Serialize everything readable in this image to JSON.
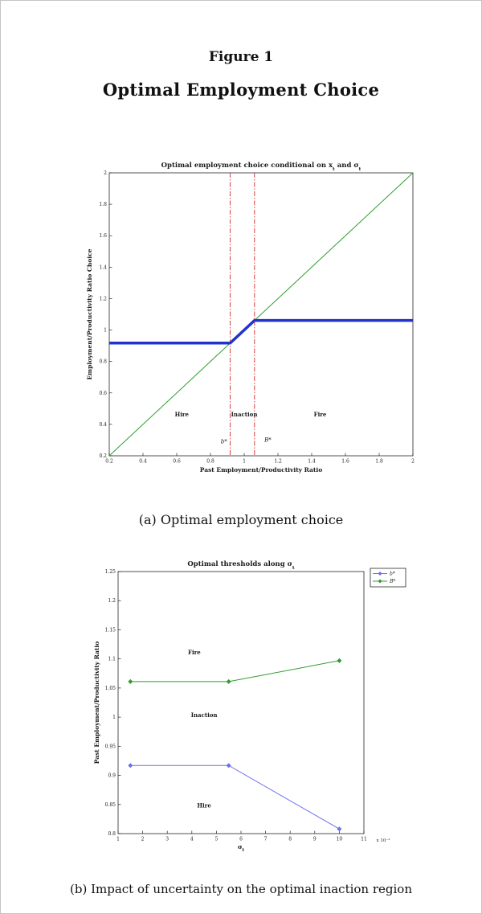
{
  "figure": {
    "number": "Figure 1",
    "title": "Optimal Employment Choice",
    "caption_a": "(a) Optimal employment choice",
    "caption_b": "(b) Impact of uncertainty on the optimal inaction region"
  },
  "colors": {
    "policy_blue": "#2233cc",
    "threshold_blue": "#6d6df2",
    "green": "#2e9e2e",
    "red": "#d42a2a",
    "axis": "#262626"
  },
  "chart_data": [
    {
      "type": "line",
      "title": "Optimal employment choice conditional on x_t and σ_t",
      "xlabel": "Past Employment/Productivity Ratio",
      "ylabel": "Employment/Productivity Ratio Choice",
      "xlim": [
        0.2,
        2
      ],
      "ylim": [
        0.2,
        2
      ],
      "xticks": [
        0.2,
        0.4,
        0.6,
        0.8,
        1,
        1.2,
        1.4,
        1.6,
        1.8,
        2
      ],
      "yticks": [
        0.2,
        0.4,
        0.6,
        0.8,
        1,
        1.2,
        1.4,
        1.6,
        1.8,
        2
      ],
      "grid": false,
      "legend_position": "none",
      "series": [
        {
          "name": "45-degree-line",
          "color": "#2e9e2e",
          "width": 1,
          "x": [
            0.2,
            2
          ],
          "y": [
            0.2,
            2
          ]
        },
        {
          "name": "optimal-policy",
          "color": "#2233cc",
          "width": 3.5,
          "x": [
            0.2,
            0.917,
            1.061,
            2
          ],
          "y": [
            0.917,
            0.917,
            1.061,
            1.061
          ]
        }
      ],
      "vlines": [
        {
          "x": 0.917,
          "color": "#d42a2a",
          "style": "dash-dot",
          "label": "b*"
        },
        {
          "x": 1.061,
          "color": "#d42a2a",
          "style": "dash-dot",
          "label": "B*"
        }
      ],
      "annotations": [
        {
          "text": "Hire",
          "x": 0.63,
          "y": 0.45,
          "style": "bold"
        },
        {
          "text": "Inaction",
          "x": 1.0,
          "y": 0.45,
          "style": "bold"
        },
        {
          "text": "Fire",
          "x": 1.45,
          "y": 0.45,
          "style": "bold"
        },
        {
          "text": "b*",
          "x": 0.88,
          "y": 0.28,
          "style": "italic"
        },
        {
          "text": "B*",
          "x": 1.14,
          "y": 0.29,
          "style": "italic"
        }
      ]
    },
    {
      "type": "line",
      "title": "Optimal thresholds along σ_t",
      "xlabel": "σ_t",
      "x_scale_note": "x 10⁻³",
      "ylabel": "Past Employment/Productivity Ratio",
      "xlim": [
        1,
        11
      ],
      "ylim": [
        0.8,
        1.25
      ],
      "xticks": [
        1,
        2,
        3,
        4,
        5,
        6,
        7,
        8,
        9,
        10,
        11
      ],
      "yticks": [
        0.8,
        0.85,
        0.9,
        0.95,
        1,
        1.05,
        1.1,
        1.15,
        1.2,
        1.25
      ],
      "grid": false,
      "legend_position": "top-right",
      "legend": [
        {
          "label": "b*",
          "color": "#6d6df2"
        },
        {
          "label": "B*",
          "color": "#2e9e2e"
        }
      ],
      "series": [
        {
          "name": "b-star",
          "color": "#6d6df2",
          "width": 1,
          "marker": "diamond",
          "x": [
            1.5,
            5.5,
            10
          ],
          "y": [
            0.917,
            0.917,
            0.808
          ]
        },
        {
          "name": "B-star",
          "color": "#2e9e2e",
          "width": 1,
          "marker": "diamond",
          "x": [
            1.5,
            5.5,
            10
          ],
          "y": [
            1.061,
            1.061,
            1.097
          ]
        }
      ],
      "annotations": [
        {
          "text": "Fire",
          "x": 4.1,
          "y": 1.108,
          "style": "bold"
        },
        {
          "text": "Inaction",
          "x": 4.5,
          "y": 1.0,
          "style": "bold"
        },
        {
          "text": "Hire",
          "x": 4.5,
          "y": 0.845,
          "style": "bold"
        }
      ]
    }
  ]
}
